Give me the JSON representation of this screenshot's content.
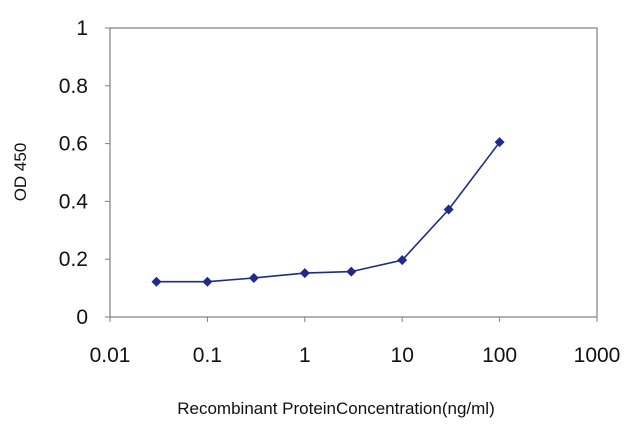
{
  "chart_data": {
    "type": "line",
    "title": "",
    "xlabel": "Recombinant ProteinConcentration(ng/ml)",
    "ylabel": "OD 450",
    "x_scale": "log",
    "xlim": [
      0.01,
      1000
    ],
    "ylim": [
      0,
      1
    ],
    "x_ticks": [
      "0.01",
      "0.1",
      "1",
      "10",
      "100",
      "1000"
    ],
    "y_ticks": [
      "0",
      "0.2",
      "0.4",
      "0.6",
      "0.8",
      "1"
    ],
    "grid": false,
    "legend": "none",
    "series": [
      {
        "color": "#1f2a8c",
        "x": [
          0.03,
          0.1,
          0.3,
          1,
          3,
          10,
          30,
          100
        ],
        "y": [
          0.122,
          0.122,
          0.135,
          0.152,
          0.157,
          0.197,
          0.372,
          0.605
        ]
      }
    ]
  }
}
